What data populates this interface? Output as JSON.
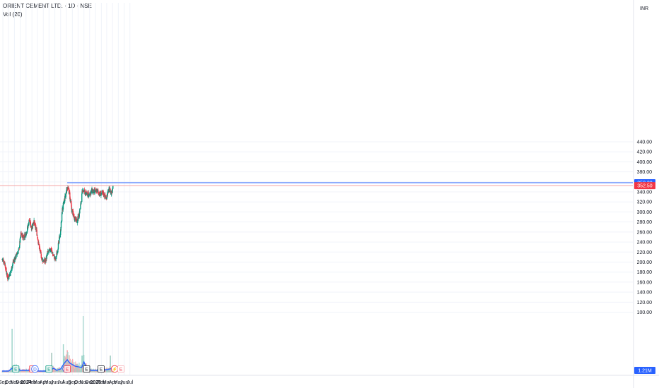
{
  "header": {
    "symbol_title": "ORIENT CEMENT LTD. · 1D · NSE",
    "volume_label": "Vol (20)"
  },
  "colors": {
    "up": "#089981",
    "down": "#f23645",
    "vol_up": "#9fd5cb",
    "vol_down": "#f7a9b0",
    "vol_ma": "#2962ff",
    "resistance_line": "#2962ff",
    "current_line": "#f4a3a3",
    "grid": "#f0f3fa",
    "axis_text": "#131722"
  },
  "chart_data": {
    "type": "candlestick",
    "title": "ORIENT CEMENT LTD. · 1D · NSE",
    "currency": "INR",
    "y_ticks": [
      100,
      120,
      140,
      160,
      180,
      200,
      220,
      240,
      260,
      280,
      300,
      320,
      340,
      360,
      380,
      400,
      420,
      440
    ],
    "x_labels": [
      {
        "date": "2023-09-01",
        "label": "Sep"
      },
      {
        "date": "2023-10-01",
        "label": "Oct"
      },
      {
        "date": "2023-11-01",
        "label": "Nov"
      },
      {
        "date": "2023-12-01",
        "label": "Dec"
      },
      {
        "date": "2024-01-01",
        "label": "2024"
      },
      {
        "date": "2024-02-01",
        "label": "Feb"
      },
      {
        "date": "2024-03-01",
        "label": "Mar"
      },
      {
        "date": "2024-04-01",
        "label": "Apr"
      },
      {
        "date": "2024-05-01",
        "label": "May"
      },
      {
        "date": "2024-06-01",
        "label": "Jun"
      },
      {
        "date": "2024-07-01",
        "label": "Jul"
      },
      {
        "date": "2024-08-01",
        "label": "Aug"
      },
      {
        "date": "2024-09-01",
        "label": "Sep"
      },
      {
        "date": "2024-10-01",
        "label": "Oct"
      },
      {
        "date": "2024-11-01",
        "label": "Nov"
      },
      {
        "date": "2024-12-01",
        "label": "Dec"
      },
      {
        "date": "2025-01-01",
        "label": "2025"
      },
      {
        "date": "2025-02-01",
        "label": "Feb"
      },
      {
        "date": "2025-03-01",
        "label": "Mar"
      },
      {
        "date": "2025-04-01",
        "label": "Apr"
      },
      {
        "date": "2025-05-01",
        "label": "May"
      },
      {
        "date": "2025-06-01",
        "label": "Jun"
      },
      {
        "date": "2025-07-01",
        "label": "Jul"
      }
    ],
    "price_path": [
      [
        "2023-08-28",
        206
      ],
      [
        "2023-09-10",
        200
      ],
      [
        "2023-09-25",
        168
      ],
      [
        "2023-10-10",
        178
      ],
      [
        "2023-10-25",
        200
      ],
      [
        "2023-11-10",
        212
      ],
      [
        "2023-11-25",
        226
      ],
      [
        "2023-12-05",
        256
      ],
      [
        "2023-12-20",
        250
      ],
      [
        "2024-01-05",
        262
      ],
      [
        "2024-01-18",
        284
      ],
      [
        "2024-01-30",
        268
      ],
      [
        "2024-02-10",
        282
      ],
      [
        "2024-02-25",
        262
      ],
      [
        "2024-03-10",
        230
      ],
      [
        "2024-03-25",
        206
      ],
      [
        "2024-04-10",
        200
      ],
      [
        "2024-04-25",
        218
      ],
      [
        "2024-05-10",
        226
      ],
      [
        "2024-05-25",
        212
      ],
      [
        "2024-06-05",
        205
      ],
      [
        "2024-06-20",
        236
      ],
      [
        "2024-07-01",
        262
      ],
      [
        "2024-07-10",
        305
      ],
      [
        "2024-07-25",
        330
      ],
      [
        "2024-08-05",
        350
      ],
      [
        "2024-08-15",
        340
      ],
      [
        "2024-08-28",
        305
      ],
      [
        "2024-09-10",
        290
      ],
      [
        "2024-09-25",
        282
      ],
      [
        "2024-10-05",
        292
      ],
      [
        "2024-10-15",
        315
      ],
      [
        "2024-10-25",
        345
      ],
      [
        "2024-11-10",
        338
      ],
      [
        "2024-11-25",
        333
      ],
      [
        "2024-12-10",
        342
      ],
      [
        "2024-12-25",
        340
      ],
      [
        "2025-01-10",
        342
      ],
      [
        "2025-01-25",
        335
      ],
      [
        "2025-02-10",
        338
      ],
      [
        "2025-02-25",
        328
      ],
      [
        "2025-03-05",
        336
      ],
      [
        "2025-03-15",
        346
      ],
      [
        "2025-03-25",
        337
      ],
      [
        "2025-04-03",
        352.5
      ]
    ],
    "volume_ma_path": [
      [
        "2023-08-28",
        2
      ],
      [
        "2023-10-01",
        2
      ],
      [
        "2023-10-20",
        6
      ],
      [
        "2023-11-10",
        7
      ],
      [
        "2023-12-01",
        3
      ],
      [
        "2024-01-10",
        3
      ],
      [
        "2024-02-10",
        3
      ],
      [
        "2024-03-10",
        2
      ],
      [
        "2024-05-01",
        2
      ],
      [
        "2024-05-25",
        6
      ],
      [
        "2024-06-10",
        3
      ],
      [
        "2024-07-01",
        5
      ],
      [
        "2024-07-20",
        13
      ],
      [
        "2024-08-05",
        18
      ],
      [
        "2024-08-20",
        13
      ],
      [
        "2024-09-15",
        9
      ],
      [
        "2024-10-20",
        7
      ],
      [
        "2024-11-01",
        15
      ],
      [
        "2024-11-15",
        6
      ],
      [
        "2024-12-10",
        3
      ],
      [
        "2025-02-01",
        3
      ],
      [
        "2025-03-01",
        4
      ],
      [
        "2025-04-03",
        6
      ]
    ],
    "volume_spikes": [
      [
        "2023-10-20",
        62
      ],
      [
        "2024-05-15",
        28
      ],
      [
        "2024-07-15",
        40
      ],
      [
        "2024-10-22",
        24
      ],
      [
        "2024-10-27",
        80
      ],
      [
        "2025-03-20",
        24
      ]
    ],
    "horizontal_lines": [
      {
        "value": 358.3,
        "label": "358.30",
        "kind": "resistance"
      },
      {
        "value": 352.5,
        "label": "352.50",
        "kind": "current"
      }
    ],
    "volume_value_label": "1.21M",
    "event_markers": [
      {
        "date": "2023-11-08",
        "letter": "E",
        "style": "earnings-green"
      },
      {
        "date": "2024-02-05",
        "letter": "E",
        "style": "earnings-red"
      },
      {
        "date": "2024-02-17",
        "letter": "D",
        "style": "dividend"
      },
      {
        "date": "2024-05-01",
        "letter": "E",
        "style": "earnings-green"
      },
      {
        "date": "2024-07-30",
        "letter": "D",
        "style": "dividend"
      },
      {
        "date": "2024-08-05",
        "letter": "E",
        "style": "earnings-red"
      },
      {
        "date": "2024-11-15",
        "letter": "E",
        "style": "earnings-gray"
      },
      {
        "date": "2025-01-30",
        "letter": "E",
        "style": "earnings-gray"
      },
      {
        "date": "2025-04-12",
        "letter": "⚡",
        "style": "flash"
      },
      {
        "date": "2025-05-15",
        "letter": "E",
        "style": "earnings-future"
      }
    ]
  }
}
